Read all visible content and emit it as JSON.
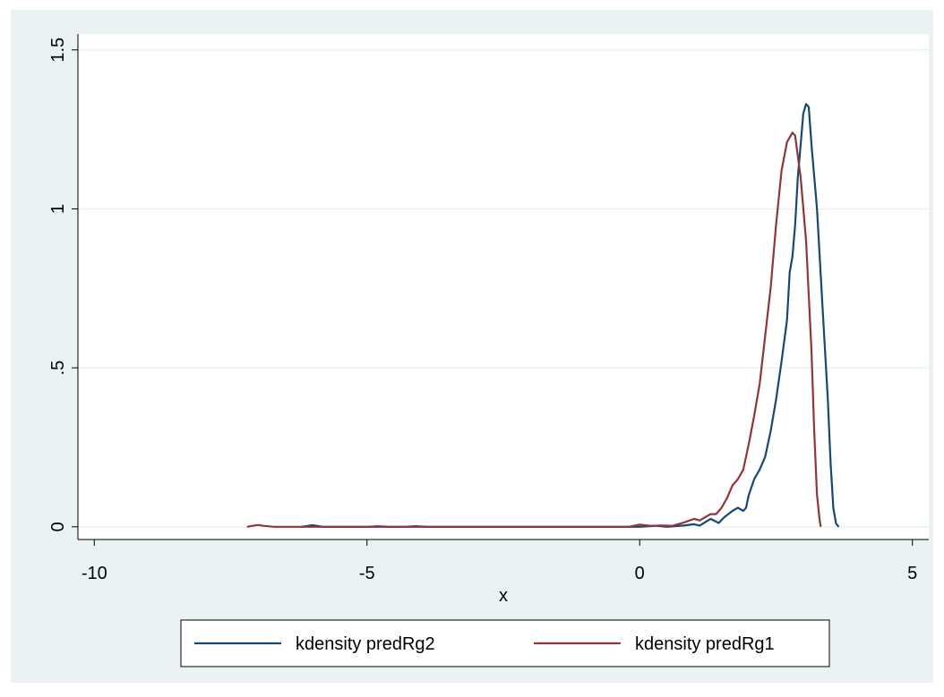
{
  "chart_data": {
    "type": "line",
    "title": "",
    "xlabel": "x",
    "ylabel": "",
    "xlim": [
      -10.3,
      5.3
    ],
    "ylim": [
      -0.04,
      1.55
    ],
    "x_ticks": [
      {
        "value": -10,
        "label": "-10"
      },
      {
        "value": -5,
        "label": "-5"
      },
      {
        "value": 0,
        "label": "0"
      },
      {
        "value": 5,
        "label": "5"
      }
    ],
    "y_ticks": [
      {
        "value": 0,
        "label": "0"
      },
      {
        "value": 0.5,
        "label": ".5"
      },
      {
        "value": 1,
        "label": "1"
      },
      {
        "value": 1.5,
        "label": "1.5"
      }
    ],
    "grid": "horizontal",
    "legend_position": "bottom",
    "series": [
      {
        "name": "kdensity predRg2",
        "color": "#1a476f",
        "points": [
          [
            -6.2,
            0.0
          ],
          [
            -6.0,
            0.005
          ],
          [
            -5.8,
            0.0
          ],
          [
            -5.0,
            0.0
          ],
          [
            -4.3,
            0.0
          ],
          [
            -4.1,
            0.002
          ],
          [
            -3.9,
            0.0
          ],
          [
            -2.0,
            0.0
          ],
          [
            0.0,
            0.0
          ],
          [
            0.3,
            0.003
          ],
          [
            0.5,
            0.0
          ],
          [
            0.8,
            0.004
          ],
          [
            1.0,
            0.008
          ],
          [
            1.1,
            0.004
          ],
          [
            1.3,
            0.025
          ],
          [
            1.45,
            0.012
          ],
          [
            1.55,
            0.03
          ],
          [
            1.7,
            0.05
          ],
          [
            1.8,
            0.06
          ],
          [
            1.9,
            0.05
          ],
          [
            1.95,
            0.06
          ],
          [
            2.0,
            0.1
          ],
          [
            2.1,
            0.15
          ],
          [
            2.2,
            0.18
          ],
          [
            2.3,
            0.22
          ],
          [
            2.4,
            0.3
          ],
          [
            2.5,
            0.4
          ],
          [
            2.6,
            0.52
          ],
          [
            2.7,
            0.65
          ],
          [
            2.75,
            0.8
          ],
          [
            2.8,
            0.85
          ],
          [
            2.85,
            0.95
          ],
          [
            2.9,
            1.1
          ],
          [
            2.95,
            1.2
          ],
          [
            3.0,
            1.3
          ],
          [
            3.05,
            1.33
          ],
          [
            3.1,
            1.32
          ],
          [
            3.15,
            1.2
          ],
          [
            3.25,
            1.0
          ],
          [
            3.35,
            0.7
          ],
          [
            3.45,
            0.4
          ],
          [
            3.5,
            0.2
          ],
          [
            3.55,
            0.06
          ],
          [
            3.6,
            0.01
          ],
          [
            3.65,
            0.0
          ]
        ]
      },
      {
        "name": "kdensity predRg1",
        "color": "#90353b",
        "points": [
          [
            -7.2,
            0.0
          ],
          [
            -7.1,
            0.003
          ],
          [
            -7.0,
            0.006
          ],
          [
            -6.9,
            0.003
          ],
          [
            -6.7,
            0.0
          ],
          [
            -5.0,
            0.0
          ],
          [
            -4.8,
            0.002
          ],
          [
            -4.6,
            0.0
          ],
          [
            -2.0,
            0.0
          ],
          [
            -0.2,
            0.0
          ],
          [
            0.0,
            0.007
          ],
          [
            0.2,
            0.003
          ],
          [
            0.4,
            0.004
          ],
          [
            0.6,
            0.003
          ],
          [
            0.8,
            0.013
          ],
          [
            1.0,
            0.025
          ],
          [
            1.1,
            0.02
          ],
          [
            1.2,
            0.03
          ],
          [
            1.3,
            0.04
          ],
          [
            1.4,
            0.04
          ],
          [
            1.5,
            0.06
          ],
          [
            1.6,
            0.09
          ],
          [
            1.7,
            0.13
          ],
          [
            1.8,
            0.15
          ],
          [
            1.9,
            0.18
          ],
          [
            2.0,
            0.26
          ],
          [
            2.1,
            0.35
          ],
          [
            2.2,
            0.45
          ],
          [
            2.3,
            0.6
          ],
          [
            2.4,
            0.75
          ],
          [
            2.5,
            0.95
          ],
          [
            2.6,
            1.12
          ],
          [
            2.7,
            1.21
          ],
          [
            2.8,
            1.24
          ],
          [
            2.85,
            1.23
          ],
          [
            2.95,
            1.1
          ],
          [
            3.05,
            0.9
          ],
          [
            3.15,
            0.55
          ],
          [
            3.2,
            0.3
          ],
          [
            3.25,
            0.1
          ],
          [
            3.3,
            0.02
          ],
          [
            3.32,
            0.0
          ]
        ]
      }
    ]
  }
}
